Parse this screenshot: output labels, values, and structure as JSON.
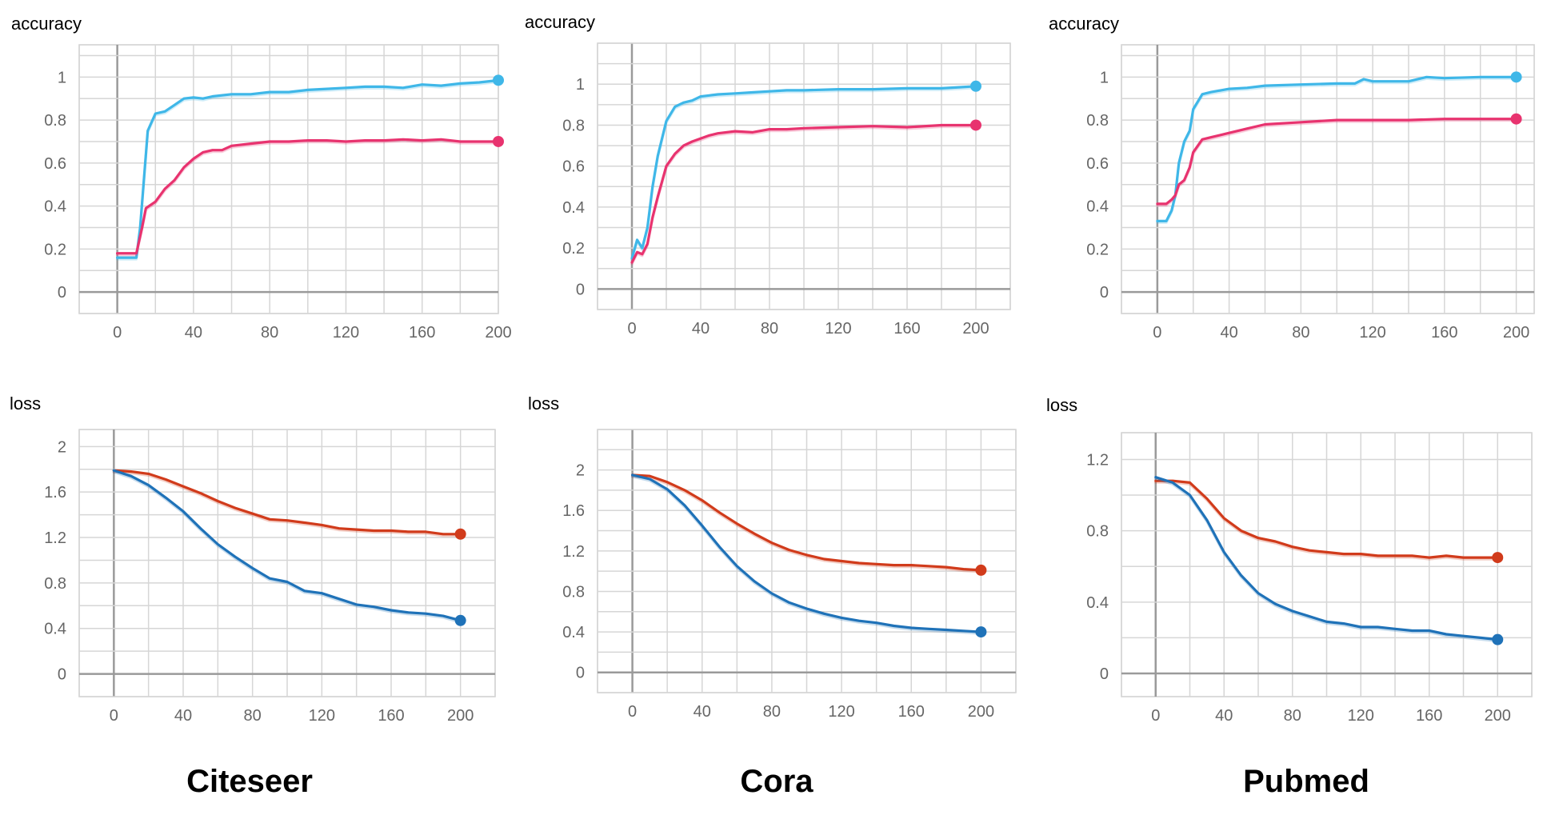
{
  "chart_data": [
    {
      "type": "line",
      "metric": "accuracy",
      "dataset": "Citeseer",
      "ylabel": "accuracy",
      "xlim": [
        -20,
        200
      ],
      "ylim": [
        -0.1,
        1.15
      ],
      "x_ticks": [
        "0",
        "40",
        "80",
        "120",
        "160",
        "200"
      ],
      "y_ticks": [
        "0",
        "0.2",
        "0.4",
        "0.6",
        "0.8",
        "1"
      ],
      "grid": true,
      "series": [
        {
          "color": "#3fb7e8",
          "end_marker": true,
          "x": [
            0,
            10,
            12,
            16,
            20,
            25,
            30,
            35,
            40,
            45,
            50,
            60,
            70,
            80,
            90,
            100,
            110,
            120,
            130,
            140,
            150,
            160,
            170,
            180,
            190,
            200
          ],
          "y": [
            0.16,
            0.16,
            0.3,
            0.75,
            0.83,
            0.84,
            0.87,
            0.9,
            0.905,
            0.9,
            0.91,
            0.92,
            0.92,
            0.93,
            0.93,
            0.94,
            0.945,
            0.95,
            0.955,
            0.955,
            0.95,
            0.965,
            0.96,
            0.97,
            0.975,
            0.985
          ]
        },
        {
          "color": "#e8336f",
          "end_marker": true,
          "x": [
            0,
            10,
            13,
            15,
            20,
            25,
            30,
            35,
            40,
            45,
            50,
            55,
            60,
            70,
            80,
            90,
            100,
            110,
            120,
            130,
            140,
            150,
            160,
            170,
            180,
            190,
            200
          ],
          "y": [
            0.18,
            0.18,
            0.3,
            0.39,
            0.42,
            0.48,
            0.52,
            0.58,
            0.62,
            0.65,
            0.66,
            0.66,
            0.68,
            0.69,
            0.7,
            0.7,
            0.705,
            0.705,
            0.7,
            0.705,
            0.705,
            0.71,
            0.705,
            0.71,
            0.7,
            0.7,
            0.7
          ]
        }
      ]
    },
    {
      "type": "line",
      "metric": "accuracy",
      "dataset": "Cora",
      "ylabel": "accuracy",
      "xlim": [
        -20,
        220
      ],
      "ylim": [
        -0.1,
        1.2
      ],
      "x_ticks": [
        "0",
        "40",
        "80",
        "120",
        "160",
        "200"
      ],
      "y_ticks": [
        "0",
        "0.2",
        "0.4",
        "0.6",
        "0.8",
        "1"
      ],
      "grid": true,
      "series": [
        {
          "color": "#3fb7e8",
          "end_marker": true,
          "x": [
            0,
            3,
            6,
            9,
            12,
            15,
            20,
            25,
            30,
            35,
            40,
            45,
            50,
            60,
            70,
            80,
            90,
            100,
            120,
            140,
            160,
            180,
            190,
            200
          ],
          "y": [
            0.15,
            0.24,
            0.2,
            0.3,
            0.5,
            0.65,
            0.82,
            0.89,
            0.91,
            0.92,
            0.94,
            0.945,
            0.95,
            0.955,
            0.96,
            0.965,
            0.97,
            0.97,
            0.975,
            0.975,
            0.98,
            0.98,
            0.985,
            0.99
          ]
        },
        {
          "color": "#e8336f",
          "end_marker": true,
          "x": [
            0,
            3,
            6,
            9,
            12,
            15,
            20,
            25,
            30,
            35,
            40,
            45,
            50,
            60,
            70,
            80,
            90,
            100,
            120,
            140,
            160,
            180,
            200
          ],
          "y": [
            0.13,
            0.18,
            0.17,
            0.22,
            0.35,
            0.45,
            0.6,
            0.66,
            0.7,
            0.72,
            0.735,
            0.75,
            0.76,
            0.77,
            0.765,
            0.78,
            0.78,
            0.785,
            0.79,
            0.795,
            0.79,
            0.8,
            0.8
          ]
        }
      ]
    },
    {
      "type": "line",
      "metric": "accuracy",
      "dataset": "Pubmed",
      "ylabel": "accuracy",
      "xlim": [
        -20,
        210
      ],
      "ylim": [
        -0.1,
        1.15
      ],
      "x_ticks": [
        "0",
        "40",
        "80",
        "120",
        "160",
        "200"
      ],
      "y_ticks": [
        "0",
        "0.2",
        "0.4",
        "0.6",
        "0.8",
        "1"
      ],
      "grid": true,
      "series": [
        {
          "color": "#3fb7e8",
          "end_marker": true,
          "x": [
            0,
            5,
            8,
            10,
            12,
            15,
            18,
            20,
            25,
            30,
            40,
            50,
            60,
            80,
            100,
            110,
            115,
            120,
            140,
            150,
            160,
            180,
            200
          ],
          "y": [
            0.33,
            0.33,
            0.38,
            0.45,
            0.6,
            0.7,
            0.75,
            0.85,
            0.92,
            0.93,
            0.945,
            0.95,
            0.96,
            0.965,
            0.97,
            0.97,
            0.99,
            0.98,
            0.98,
            1.0,
            0.995,
            1.0,
            1.0
          ]
        },
        {
          "color": "#e8336f",
          "end_marker": true,
          "x": [
            0,
            5,
            8,
            10,
            12,
            15,
            18,
            20,
            25,
            30,
            40,
            50,
            60,
            80,
            100,
            120,
            140,
            160,
            180,
            200
          ],
          "y": [
            0.41,
            0.41,
            0.43,
            0.45,
            0.5,
            0.52,
            0.58,
            0.65,
            0.71,
            0.72,
            0.74,
            0.76,
            0.78,
            0.79,
            0.8,
            0.8,
            0.8,
            0.805,
            0.805,
            0.805
          ]
        }
      ]
    },
    {
      "type": "line",
      "metric": "loss",
      "dataset": "Citeseer",
      "ylabel": "loss",
      "xlim": [
        -20,
        220
      ],
      "ylim": [
        -0.2,
        2.15
      ],
      "x_ticks": [
        "0",
        "40",
        "80",
        "120",
        "160",
        "200"
      ],
      "y_ticks": [
        "0",
        "0.4",
        "0.8",
        "1.2",
        "1.6",
        "2"
      ],
      "grid": true,
      "series": [
        {
          "color": "#d13b1b",
          "end_marker": true,
          "x": [
            0,
            10,
            20,
            30,
            40,
            50,
            60,
            70,
            80,
            90,
            100,
            110,
            120,
            130,
            140,
            150,
            160,
            170,
            180,
            190,
            200
          ],
          "y": [
            1.79,
            1.78,
            1.76,
            1.71,
            1.65,
            1.59,
            1.52,
            1.46,
            1.41,
            1.36,
            1.35,
            1.33,
            1.31,
            1.28,
            1.27,
            1.26,
            1.26,
            1.25,
            1.25,
            1.23,
            1.23
          ]
        },
        {
          "color": "#1f72b8",
          "end_marker": true,
          "x": [
            0,
            10,
            20,
            30,
            40,
            50,
            60,
            70,
            80,
            90,
            100,
            110,
            120,
            130,
            140,
            150,
            160,
            170,
            180,
            190,
            200
          ],
          "y": [
            1.79,
            1.74,
            1.66,
            1.55,
            1.43,
            1.28,
            1.14,
            1.03,
            0.93,
            0.84,
            0.81,
            0.73,
            0.71,
            0.66,
            0.61,
            0.59,
            0.56,
            0.54,
            0.53,
            0.51,
            0.47
          ]
        }
      ]
    },
    {
      "type": "line",
      "metric": "loss",
      "dataset": "Cora",
      "ylabel": "loss",
      "xlim": [
        -20,
        220
      ],
      "ylim": [
        -0.2,
        2.4
      ],
      "x_ticks": [
        "0",
        "40",
        "80",
        "120",
        "160",
        "200"
      ],
      "y_ticks": [
        "0",
        "0.4",
        "0.8",
        "1.2",
        "1.6",
        "2"
      ],
      "grid": true,
      "series": [
        {
          "color": "#d13b1b",
          "end_marker": true,
          "x": [
            0,
            10,
            20,
            30,
            40,
            50,
            60,
            70,
            80,
            90,
            100,
            110,
            120,
            130,
            140,
            150,
            160,
            170,
            180,
            190,
            200
          ],
          "y": [
            1.95,
            1.94,
            1.88,
            1.8,
            1.7,
            1.58,
            1.47,
            1.37,
            1.28,
            1.21,
            1.16,
            1.12,
            1.1,
            1.08,
            1.07,
            1.06,
            1.06,
            1.05,
            1.04,
            1.02,
            1.01
          ]
        },
        {
          "color": "#1f72b8",
          "end_marker": true,
          "x": [
            0,
            10,
            20,
            30,
            40,
            50,
            60,
            70,
            80,
            90,
            100,
            110,
            120,
            130,
            140,
            150,
            160,
            170,
            180,
            190,
            200
          ],
          "y": [
            1.95,
            1.91,
            1.81,
            1.65,
            1.45,
            1.24,
            1.05,
            0.9,
            0.78,
            0.69,
            0.63,
            0.58,
            0.54,
            0.51,
            0.49,
            0.46,
            0.44,
            0.43,
            0.42,
            0.41,
            0.4
          ]
        }
      ]
    },
    {
      "type": "line",
      "metric": "loss",
      "dataset": "Pubmed",
      "ylabel": "loss",
      "xlim": [
        -20,
        220
      ],
      "ylim": [
        -0.13,
        1.35
      ],
      "x_ticks": [
        "0",
        "40",
        "80",
        "120",
        "160",
        "200"
      ],
      "y_ticks": [
        "0",
        "0.4",
        "0.8",
        "1.2"
      ],
      "grid": true,
      "series": [
        {
          "color": "#d13b1b",
          "end_marker": true,
          "x": [
            0,
            10,
            20,
            30,
            40,
            50,
            60,
            70,
            80,
            90,
            100,
            110,
            120,
            130,
            140,
            150,
            160,
            170,
            180,
            190,
            200
          ],
          "y": [
            1.08,
            1.08,
            1.07,
            0.98,
            0.87,
            0.8,
            0.76,
            0.74,
            0.71,
            0.69,
            0.68,
            0.67,
            0.67,
            0.66,
            0.66,
            0.66,
            0.65,
            0.66,
            0.65,
            0.65,
            0.65
          ]
        },
        {
          "color": "#1f72b8",
          "end_marker": true,
          "x": [
            0,
            10,
            20,
            30,
            40,
            50,
            60,
            70,
            80,
            90,
            100,
            110,
            120,
            130,
            140,
            150,
            160,
            170,
            180,
            190,
            200
          ],
          "y": [
            1.1,
            1.07,
            1.0,
            0.86,
            0.68,
            0.55,
            0.45,
            0.39,
            0.35,
            0.32,
            0.29,
            0.28,
            0.26,
            0.26,
            0.25,
            0.24,
            0.24,
            0.22,
            0.21,
            0.2,
            0.19
          ]
        }
      ]
    }
  ],
  "dataset_labels": [
    "Citeseer",
    "Cora",
    "Pubmed"
  ]
}
